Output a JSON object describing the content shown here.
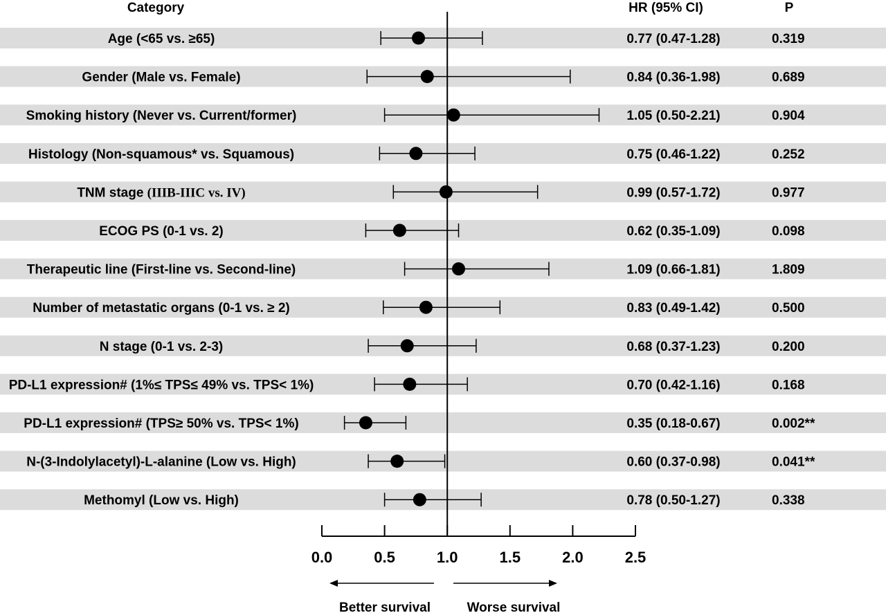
{
  "chart_data": {
    "type": "forest",
    "headers": {
      "category": "Category",
      "hr": "HR (95% CI)",
      "p": "P"
    },
    "reference_line": 1.0,
    "xlim": [
      0.0,
      2.5
    ],
    "x_ticks": [
      "0.0",
      "0.5",
      "1.0",
      "1.5",
      "2.0",
      "2.5"
    ],
    "direction_labels": {
      "left": "Better survival",
      "right": "Worse survival"
    },
    "rows": [
      {
        "category": "Age (<65 vs. ≥65)",
        "hr": 0.77,
        "low": 0.47,
        "high": 1.28,
        "hr_text": "0.77 (0.47-1.28)",
        "p": "0.319"
      },
      {
        "category": "Gender (Male vs. Female)",
        "hr": 0.84,
        "low": 0.36,
        "high": 1.98,
        "hr_text": "0.84 (0.36-1.98)",
        "p": "0.689"
      },
      {
        "category": "Smoking history (Never vs. Current/former)",
        "hr": 1.05,
        "low": 0.5,
        "high": 2.21,
        "hr_text": "1.05 (0.50-2.21)",
        "p": "0.904"
      },
      {
        "category": "Histology (Non-squamous* vs. Squamous)",
        "hr": 0.75,
        "low": 0.46,
        "high": 1.22,
        "hr_text": "0.75 (0.46-1.22)",
        "p": "0.252"
      },
      {
        "category": "TNM stage ",
        "category_serif": "(IIIB-IIIC vs. IV)",
        "hr": 0.99,
        "low": 0.57,
        "high": 1.72,
        "hr_text": "0.99 (0.57-1.72)",
        "p": "0.977"
      },
      {
        "category": "ECOG PS (0-1 vs. 2)",
        "hr": 0.62,
        "low": 0.35,
        "high": 1.09,
        "hr_text": "0.62 (0.35-1.09)",
        "p": "0.098"
      },
      {
        "category": "Therapeutic line (First-line vs. Second-line)",
        "hr": 1.09,
        "low": 0.66,
        "high": 1.81,
        "hr_text": "1.09 (0.66-1.81)",
        "p": "1.809"
      },
      {
        "category": "Number of metastatic organs (0-1 vs. ≥ 2)",
        "hr": 0.83,
        "low": 0.49,
        "high": 1.42,
        "hr_text": "0.83 (0.49-1.42)",
        "p": "0.500"
      },
      {
        "category": "N stage (0-1 vs. 2-3)",
        "hr": 0.68,
        "low": 0.37,
        "high": 1.23,
        "hr_text": "0.68 (0.37-1.23)",
        "p": "0.200"
      },
      {
        "category": "PD-L1 expression# (1%≤ TPS≤ 49% vs. TPS< 1%)",
        "hr": 0.7,
        "low": 0.42,
        "high": 1.16,
        "hr_text": "0.70 (0.42-1.16)",
        "p": "0.168"
      },
      {
        "category": "PD-L1 expression# (TPS≥ 50% vs. TPS< 1%)",
        "hr": 0.35,
        "low": 0.18,
        "high": 0.67,
        "hr_text": "0.35 (0.18-0.67)",
        "p": "0.002**"
      },
      {
        "category": "N-(3-Indolylacetyl)-L-alanine (Low vs. High)",
        "hr": 0.6,
        "low": 0.37,
        "high": 0.98,
        "hr_text": "0.60 (0.37-0.98)",
        "p": "0.041**"
      },
      {
        "category": "Methomyl (Low vs. High)",
        "hr": 0.78,
        "low": 0.5,
        "high": 1.27,
        "hr_text": "0.78 (0.50-1.27)",
        "p": "0.338"
      }
    ]
  },
  "colors": {
    "band": "#dcdcdc",
    "ink": "#000000"
  }
}
